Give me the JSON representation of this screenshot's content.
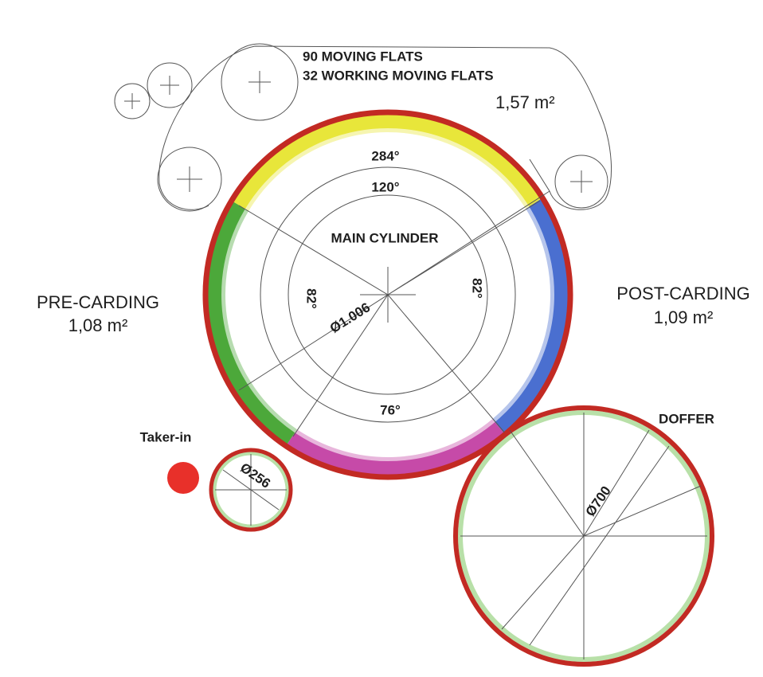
{
  "flats": {
    "total": "90 MOVING FLATS",
    "working": "32 WORKING MOVING FLATS",
    "area": "1,57 m²"
  },
  "main_cylinder": {
    "label": "MAIN CYLINDER",
    "flats_angle": "284°",
    "working_angle": "120°",
    "left_angle": "82°",
    "right_angle": "82°",
    "bottom_angle": "76°",
    "diameter": "Ø1.006"
  },
  "pre_carding": {
    "label": "PRE-CARDING",
    "area": "1,08 m²"
  },
  "post_carding": {
    "label": "POST-CARDING",
    "area": "1,09 m²"
  },
  "taker_in": {
    "label": "Taker-in",
    "diameter": "Ø256"
  },
  "doffer": {
    "label": "DOFFER",
    "diameter": "Ø700"
  }
}
